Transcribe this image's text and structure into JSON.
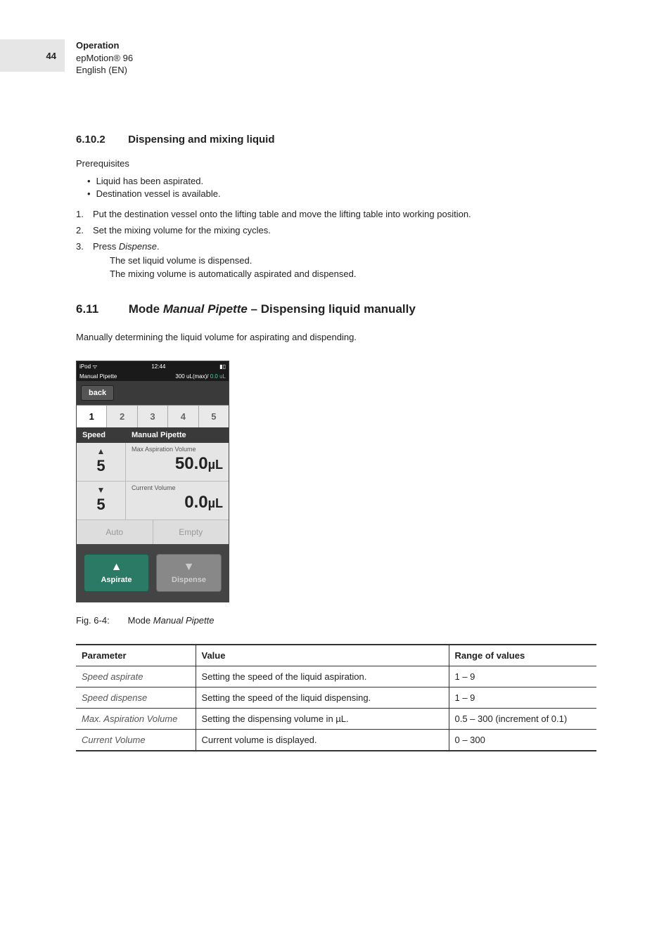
{
  "page_number": "44",
  "header": {
    "chapter": "Operation",
    "product": "epMotion® 96",
    "language": "English (EN)"
  },
  "section_6_10_2": {
    "number": "6.10.2",
    "title": "Dispensing and mixing liquid",
    "prereq_label": "Prerequisites",
    "bullets": [
      "Liquid has been aspirated.",
      "Destination vessel is available."
    ],
    "steps": [
      "Put the destination vessel onto the lifting table and move the lifting table into working position.",
      "Set the mixing volume for the mixing cycles.",
      "Press "
    ],
    "step3_em": "Dispense",
    "result1": "The set liquid volume is dispensed.",
    "result2": "The mixing volume is automatically aspirated and dispensed."
  },
  "section_6_11": {
    "number": "6.11",
    "title_a": "Mode ",
    "title_em": "Manual Pipette",
    "title_b": " – Dispensing liquid manually",
    "intro": "Manually determining the liquid volume for aspirating and dispending."
  },
  "device": {
    "status_left": "iPod ᯤ",
    "status_time": "12:44",
    "mode_label": "Manual Pipette",
    "status_right_a": "300 uL(max)/",
    "status_right_b": "0.0 uL",
    "back": "back",
    "tabs": [
      "1",
      "2",
      "3",
      "4",
      "5"
    ],
    "active_tab": 0,
    "speed_label": "Speed",
    "mode_header": "Manual Pipette",
    "speed_up": "5",
    "speed_down": "5",
    "max_asp_label": "Max Aspiration Volume",
    "max_asp_value": "50.0",
    "max_asp_unit": "µL",
    "cur_vol_label": "Current Volume",
    "cur_vol_value": "0.0",
    "cur_vol_unit": "µL",
    "auto_btn": "Auto",
    "empty_btn": "Empty",
    "aspirate_btn": "Aspirate",
    "dispense_btn": "Dispense"
  },
  "figure": {
    "label": "Fig. 6-4:",
    "text_a": "Mode ",
    "text_em": "Manual Pipette"
  },
  "table": {
    "columns": [
      "Parameter",
      "Value",
      "Range of values"
    ],
    "rows": [
      {
        "param": "Speed aspirate",
        "value": "Setting the speed of the liquid aspiration.",
        "range": "1 – 9"
      },
      {
        "param": "Speed dispense",
        "value": "Setting the speed of the liquid dispensing.",
        "range": "1 – 9"
      },
      {
        "param": "Max. Aspiration Volume",
        "value": "Setting the dispensing volume in µL.",
        "range": "0.5 – 300 (increment of 0.1)"
      },
      {
        "param": "Current Volume",
        "value": "Current volume is displayed.",
        "range": "0 – 300"
      }
    ]
  }
}
